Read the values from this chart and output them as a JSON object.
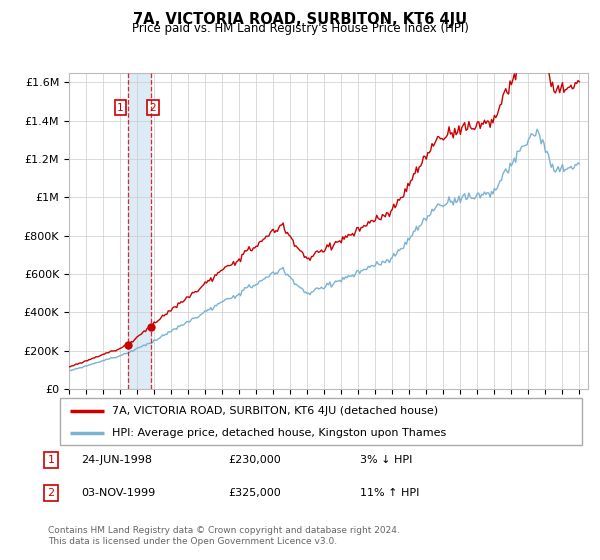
{
  "title": "7A, VICTORIA ROAD, SURBITON, KT6 4JU",
  "subtitle": "Price paid vs. HM Land Registry's House Price Index (HPI)",
  "legend_line1": "7A, VICTORIA ROAD, SURBITON, KT6 4JU (detached house)",
  "legend_line2": "HPI: Average price, detached house, Kingston upon Thames",
  "annotation1_label": "1",
  "annotation1_date": "24-JUN-1998",
  "annotation1_price": "£230,000",
  "annotation1_hpi": "3% ↓ HPI",
  "annotation2_label": "2",
  "annotation2_date": "03-NOV-1999",
  "annotation2_price": "£325,000",
  "annotation2_hpi": "11% ↑ HPI",
  "footer": "Contains HM Land Registry data © Crown copyright and database right 2024.\nThis data is licensed under the Open Government Licence v3.0.",
  "sale1_year": 1998.48,
  "sale1_price": 230000,
  "sale2_year": 1999.84,
  "sale2_price": 325000,
  "hpi_color": "#7ab3d4",
  "price_color": "#cc0000",
  "vline_color": "#cc0000",
  "vspan_color": "#c6dff0",
  "grid_color": "#cccccc",
  "ylim_max": 1650000,
  "ytick_values": [
    0,
    200000,
    400000,
    600000,
    800000,
    1000000,
    1200000,
    1400000,
    1600000
  ],
  "ytick_labels": [
    "£0",
    "£200K",
    "£400K",
    "£600K",
    "£800K",
    "£1M",
    "£1.2M",
    "£1.4M",
    "£1.6M"
  ]
}
